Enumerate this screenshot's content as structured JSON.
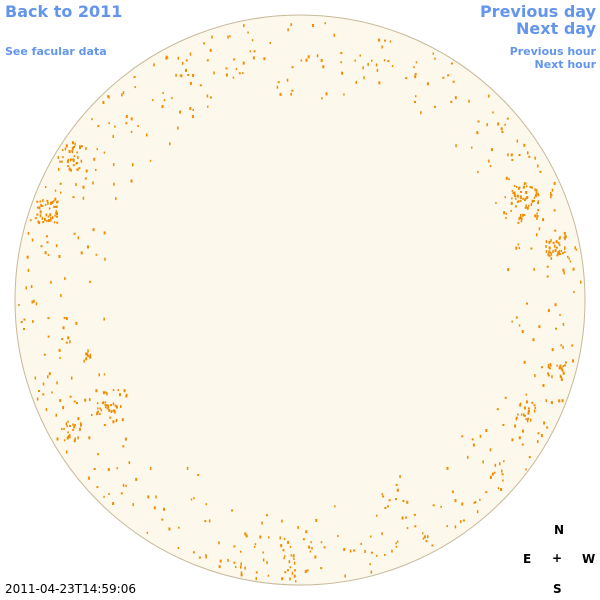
{
  "nav": {
    "back_label": "Back to 2011",
    "facular_label": "See facular data",
    "prev_day_label": "Previous day",
    "next_day_label": "Next day",
    "prev_hour_label": "Previous hour",
    "next_hour_label": "Next hour"
  },
  "timestamp": "2011-04-23T14:59:06",
  "compass": {
    "north": "N",
    "south": "S",
    "east": "E",
    "west": "W",
    "center": "+"
  },
  "colors": {
    "link": "#6495ed",
    "disk_fill": "#fdf8ec",
    "disk_edge": "#c7b89a",
    "speckle": "#f08c00"
  },
  "icons": [
    "solar-disk-icon",
    "compass-rose-icon"
  ]
}
